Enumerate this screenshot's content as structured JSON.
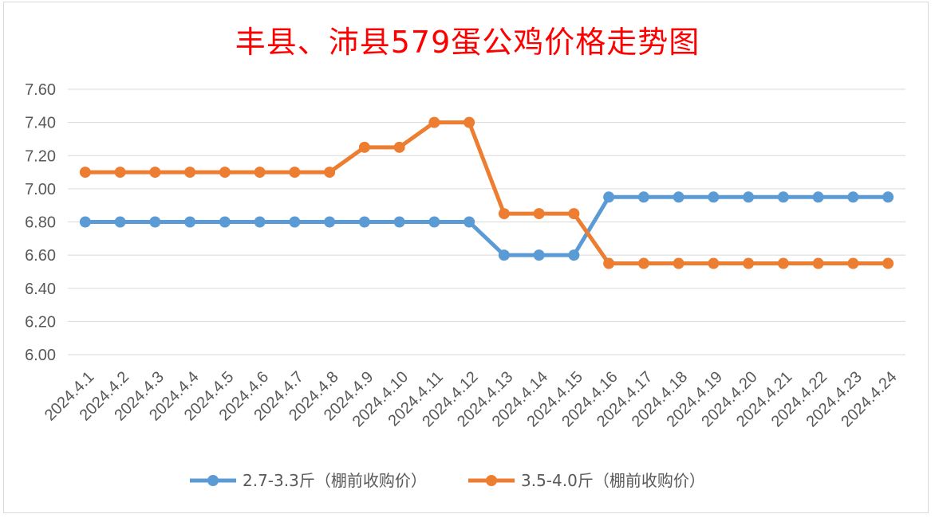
{
  "chart_data": {
    "type": "line",
    "title": "丰县、沛县579蛋公鸡价格走势图",
    "xlabel": "",
    "ylabel": "",
    "ylim": [
      6.0,
      7.6
    ],
    "y_ticks": [
      "6.00",
      "6.20",
      "6.40",
      "6.60",
      "6.80",
      "7.00",
      "7.20",
      "7.40",
      "7.60"
    ],
    "grid": "horizontal",
    "legend_position": "bottom",
    "categories": [
      "2024.4.1",
      "2024.4.2",
      "2024.4.3",
      "2024.4.4",
      "2024.4.5",
      "2024.4.6",
      "2024.4.7",
      "2024.4.8",
      "2024.4.9",
      "2024.4.10",
      "2024.4.11",
      "2024.4.12",
      "2024.4.13",
      "2024.4.14",
      "2024.4.15",
      "2024.4.16",
      "2024.4.17",
      "2024.4.18",
      "2024.4.19",
      "2024.4.20",
      "2024.4.21",
      "2024.4.22",
      "2024.4.23",
      "2024.4.24"
    ],
    "series": [
      {
        "name": "2.7-3.3斤（棚前收购价）",
        "color": "#5b9bd5",
        "values": [
          6.8,
          6.8,
          6.8,
          6.8,
          6.8,
          6.8,
          6.8,
          6.8,
          6.8,
          6.8,
          6.8,
          6.8,
          6.6,
          6.6,
          6.6,
          6.95,
          6.95,
          6.95,
          6.95,
          6.95,
          6.95,
          6.95,
          6.95,
          6.95
        ]
      },
      {
        "name": "3.5-4.0斤（棚前收购价）",
        "color": "#ed7d31",
        "values": [
          7.1,
          7.1,
          7.1,
          7.1,
          7.1,
          7.1,
          7.1,
          7.1,
          7.25,
          7.25,
          7.4,
          7.4,
          6.85,
          6.85,
          6.85,
          6.55,
          6.55,
          6.55,
          6.55,
          6.55,
          6.55,
          6.55,
          6.55,
          6.55
        ]
      }
    ]
  },
  "colors": {
    "title": "#ff0000",
    "grid": "#d9d9d9",
    "axis_text": "#595959"
  }
}
